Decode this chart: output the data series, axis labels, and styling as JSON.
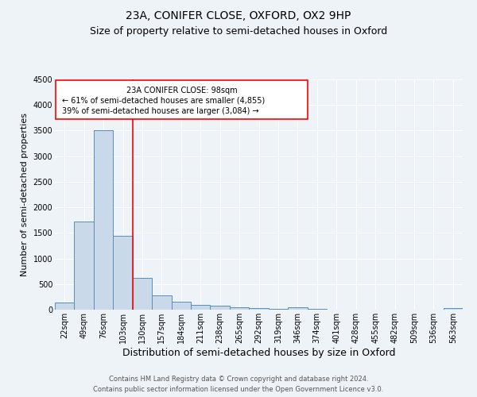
{
  "title": "23A, CONIFER CLOSE, OXFORD, OX2 9HP",
  "subtitle": "Size of property relative to semi-detached houses in Oxford",
  "xlabel": "Distribution of semi-detached houses by size in Oxford",
  "ylabel": "Number of semi-detached properties",
  "bar_labels": [
    "22sqm",
    "49sqm",
    "76sqm",
    "103sqm",
    "130sqm",
    "157sqm",
    "184sqm",
    "211sqm",
    "238sqm",
    "265sqm",
    "292sqm",
    "319sqm",
    "346sqm",
    "374sqm",
    "401sqm",
    "428sqm",
    "455sqm",
    "482sqm",
    "509sqm",
    "536sqm",
    "563sqm"
  ],
  "bar_values": [
    140,
    1720,
    3500,
    1440,
    620,
    280,
    155,
    95,
    75,
    45,
    25,
    15,
    50,
    10,
    0,
    0,
    0,
    0,
    0,
    0,
    30
  ],
  "bar_color": "#c9d9ea",
  "bar_edge_color": "#5b8db8",
  "background_color": "#eef3f8",
  "grid_color": "#ffffff",
  "ylim": [
    0,
    4500
  ],
  "yticks": [
    0,
    500,
    1000,
    1500,
    2000,
    2500,
    3000,
    3500,
    4000,
    4500
  ],
  "red_line_bin": 3,
  "annotation_text_line1": "23A CONIFER CLOSE: 98sqm",
  "annotation_text_line2": "← 61% of semi-detached houses are smaller (4,855)",
  "annotation_text_line3": "39% of semi-detached houses are larger (3,084) →",
  "footer_line1": "Contains HM Land Registry data © Crown copyright and database right 2024.",
  "footer_line2": "Contains public sector information licensed under the Open Government Licence v3.0.",
  "title_fontsize": 10,
  "subtitle_fontsize": 9,
  "xlabel_fontsize": 9,
  "ylabel_fontsize": 8,
  "tick_fontsize": 7,
  "footer_fontsize": 6
}
